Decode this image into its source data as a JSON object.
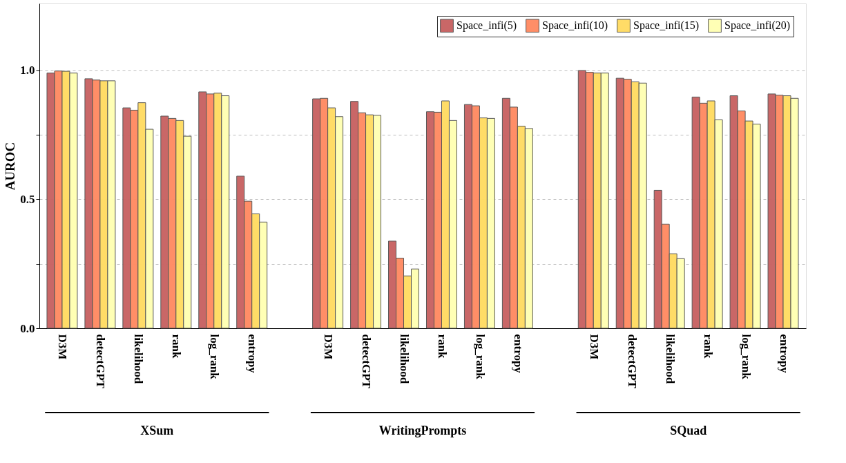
{
  "chart_data": {
    "type": "bar",
    "ylabel": "AUROC",
    "categories": [
      "D3M",
      "detectGPT",
      "likelihood",
      "rank",
      "log_rank",
      "entropy",
      "D3M",
      "detectGPT",
      "likelihood",
      "rank",
      "log_rank",
      "entropy",
      "D3M",
      "detectGPT",
      "likelihood",
      "rank",
      "log_rank",
      "entropy"
    ],
    "series": [
      {
        "name": "Space_infi(5)",
        "color": "#c86464",
        "values": [
          0.99,
          0.968,
          0.855,
          0.823,
          0.917,
          0.59,
          0.89,
          0.88,
          0.338,
          0.84,
          0.868,
          0.892,
          1.0,
          0.97,
          0.535,
          0.897,
          0.902,
          0.909
        ]
      },
      {
        "name": "Space_infi(10)",
        "color": "#ff8c64",
        "values": [
          0.998,
          0.963,
          0.846,
          0.814,
          0.909,
          0.493,
          0.892,
          0.836,
          0.272,
          0.838,
          0.863,
          0.858,
          0.993,
          0.966,
          0.404,
          0.873,
          0.843,
          0.904
        ]
      },
      {
        "name": "Space_infi(15)",
        "color": "#ffdc64",
        "values": [
          0.997,
          0.96,
          0.875,
          0.806,
          0.912,
          0.444,
          0.855,
          0.828,
          0.203,
          0.882,
          0.816,
          0.784,
          0.99,
          0.956,
          0.289,
          0.882,
          0.804,
          0.902
        ]
      },
      {
        "name": "Space_infi(20)",
        "color": "#ffffb4",
        "values": [
          0.99,
          0.96,
          0.772,
          0.745,
          0.902,
          0.412,
          0.821,
          0.826,
          0.23,
          0.806,
          0.814,
          0.775,
          0.99,
          0.951,
          0.27,
          0.809,
          0.792,
          0.892
        ]
      }
    ],
    "annotations": [
      "XSum",
      "WritingPrompts",
      "SQuad"
    ],
    "ylim": [
      0,
      1.26
    ],
    "yticks": [
      {
        "value": 0,
        "label": "0.0"
      },
      {
        "value": 0.25,
        "label": null
      },
      0.5,
      {
        "value": 0.75,
        "label": null
      },
      {
        "value": 1,
        "label": "1.0"
      }
    ],
    "grid": "y",
    "legend": "top right"
  }
}
